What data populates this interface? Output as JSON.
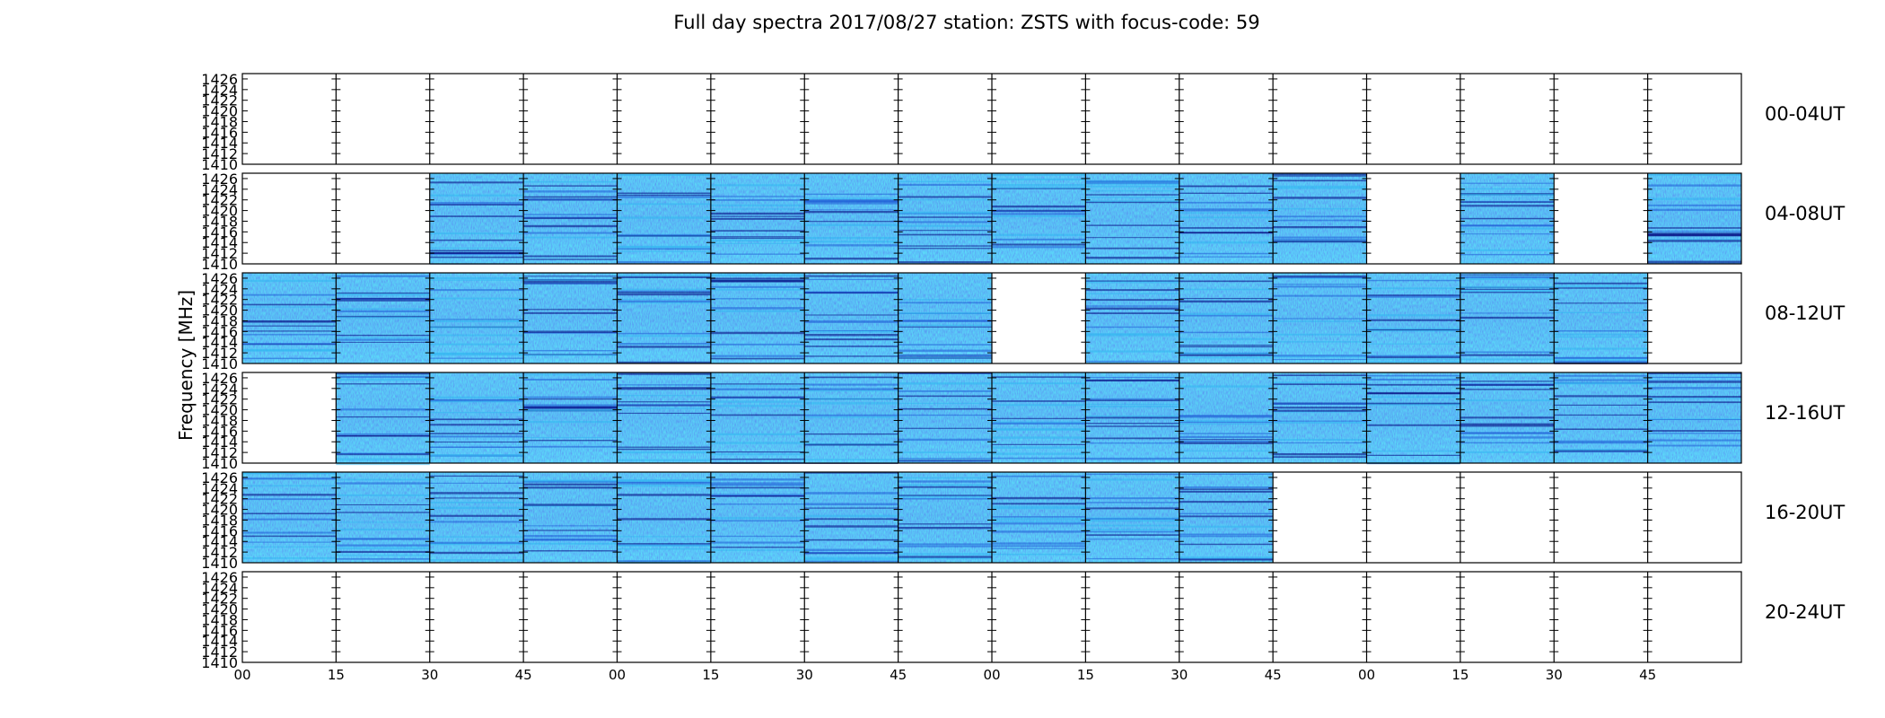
{
  "chart_data": {
    "type": "heatmap",
    "title": "Full day spectra 2017/08/27 station: ZSTS with focus-code: 59",
    "ylabel": "Frequency [MHz]",
    "ylim": [
      1410,
      1427
    ],
    "y_ticks": [
      1410,
      1412,
      1414,
      1416,
      1418,
      1420,
      1422,
      1424,
      1426
    ],
    "x_tick_labels": [
      "00",
      "15",
      "30",
      "45",
      "00",
      "15",
      "30",
      "45",
      "00",
      "15",
      "30",
      "45",
      "00",
      "15",
      "30",
      "45"
    ],
    "grid": false,
    "rows": [
      {
        "label": "00-04UT",
        "cells": [
          0,
          0,
          0,
          0,
          0,
          0,
          0,
          0,
          0,
          0,
          0,
          0,
          0,
          0,
          0,
          0
        ]
      },
      {
        "label": "04-08UT",
        "cells": [
          0,
          0,
          1,
          1,
          1,
          1,
          1,
          1,
          1,
          1,
          1,
          1,
          0,
          1,
          0,
          1
        ]
      },
      {
        "label": "08-12UT",
        "cells": [
          1,
          1,
          1,
          1,
          1,
          1,
          1,
          1,
          0,
          1,
          1,
          1,
          1,
          1,
          1,
          0
        ]
      },
      {
        "label": "12-16UT",
        "cells": [
          0,
          1,
          1,
          1,
          1,
          1,
          1,
          1,
          1,
          1,
          1,
          1,
          1,
          1,
          1,
          1
        ]
      },
      {
        "label": "16-20UT",
        "cells": [
          1,
          1,
          1,
          1,
          1,
          1,
          1,
          1,
          1,
          1,
          1,
          0,
          0,
          0,
          0,
          0
        ]
      },
      {
        "label": "20-24UT",
        "cells": [
          0,
          0,
          0,
          0,
          0,
          0,
          0,
          0,
          0,
          0,
          0,
          0,
          0,
          0,
          0,
          0
        ]
      }
    ],
    "colors": {
      "dark": "#00007a",
      "mid": "#1f5bd6",
      "light": "#31b6f0",
      "bright": "#9bf07a"
    }
  }
}
